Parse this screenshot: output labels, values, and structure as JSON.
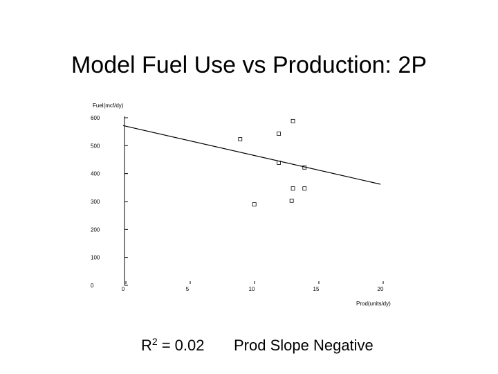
{
  "chart_data": {
    "type": "scatter",
    "title": "Model Fuel Use vs Production: 2P",
    "y_label": "Fuel(mcf/dy)",
    "x_label": "Prod(units/dy)",
    "x": [
      13.2,
      12.1,
      9.1,
      12.1,
      14.1,
      14.1,
      13.2,
      10.2,
      13.1
    ],
    "values": [
      588,
      543,
      523,
      439,
      422,
      347,
      347,
      290,
      303
    ],
    "color": "#000000",
    "trend": {
      "x": [
        0,
        20
      ],
      "values": [
        572,
        362
      ]
    },
    "xlim": [
      0,
      20
    ],
    "xticks": [
      0,
      5,
      10,
      15,
      20
    ],
    "ylim": [
      0,
      600
    ],
    "yticks": [
      0,
      100,
      200,
      300,
      400,
      500,
      600
    ],
    "annotations": {
      "r2_base": "R",
      "r2_exponent": "2",
      "r2_value": "= 0.02",
      "slope_note": "Prod Slope Negative"
    }
  }
}
